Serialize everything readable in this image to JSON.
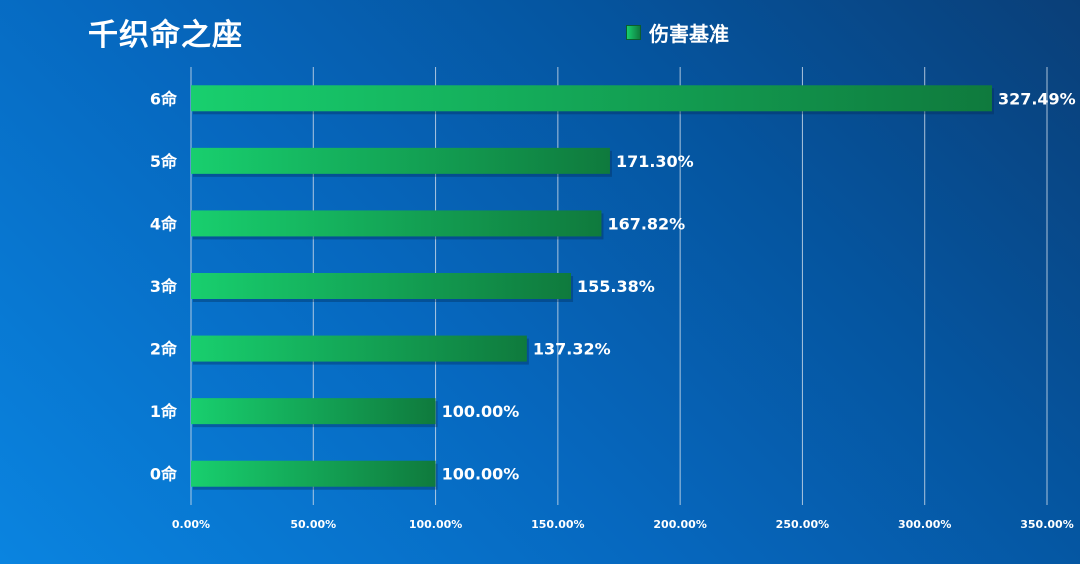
{
  "chart_data": {
    "type": "bar",
    "orientation": "horizontal",
    "title": "千织命之座",
    "categories": [
      "0命",
      "1命",
      "2命",
      "3命",
      "4命",
      "5命",
      "6命"
    ],
    "series": [
      {
        "name": "伤害基准",
        "values": [
          100.0,
          100.0,
          137.32,
          155.38,
          167.82,
          171.3,
          327.49
        ]
      }
    ],
    "data_labels": [
      "100.00%",
      "100.00%",
      "137.32%",
      "155.38%",
      "167.82%",
      "171.30%",
      "327.49%"
    ],
    "x_ticks": [
      "0.00%",
      "50.00%",
      "100.00%",
      "150.00%",
      "200.00%",
      "250.00%",
      "300.00%",
      "350.00%"
    ],
    "xlim": [
      0,
      350
    ],
    "xlabel": "",
    "ylabel": "",
    "grid": true,
    "legend_position": "top",
    "colors": {
      "bar_start": "#18cf6e",
      "bar_end": "#0f7a3d",
      "grid": "#c9d8e8",
      "text": "#ffffff"
    }
  }
}
